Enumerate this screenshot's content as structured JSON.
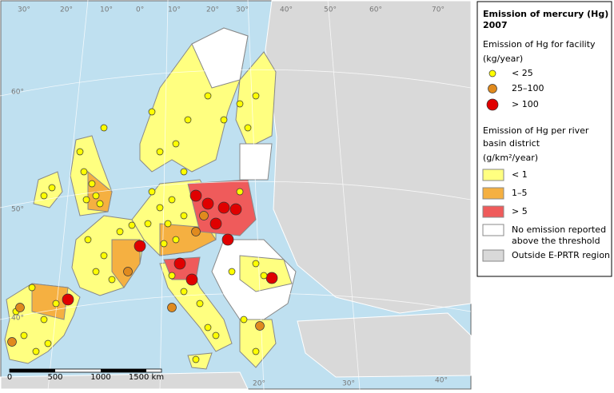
{
  "map": {
    "graticule_labels": [
      "30°",
      "20°",
      "10°",
      "0°",
      "10°",
      "20°",
      "30°",
      "40°",
      "50°",
      "60°",
      "70°",
      "60°",
      "50°",
      "40°",
      "20°",
      "30°",
      "40°"
    ],
    "scale_bar": [
      "0",
      "500",
      "1000",
      "1500 km"
    ]
  },
  "legend": {
    "title": [
      "Emission of mercury (Hg)",
      "2007"
    ],
    "facility_heading": "Emission of Hg for facility",
    "facility_unit": "(kg/year)",
    "facility_classes": [
      "< 25",
      "25–100",
      "> 100"
    ],
    "basin_heading": [
      "Emission of Hg per river",
      "basin district"
    ],
    "basin_unit": "(g/km²/year)",
    "basin_classes": [
      "< 1",
      "1–5",
      "> 5"
    ],
    "no_emission": [
      "No emission reported",
      "above the threshold"
    ],
    "outside": "Outside E-PRTR region"
  }
}
